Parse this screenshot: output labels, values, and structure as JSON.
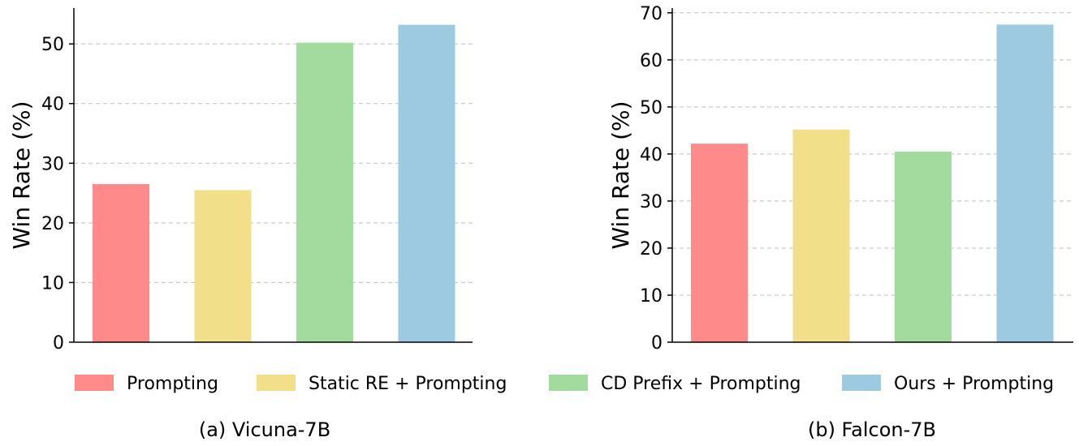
{
  "colors": {
    "prompting": "#FF8A8A",
    "static_re": "#F1DF8A",
    "cd_prefix": "#A3DB9E",
    "ours": "#9ECAE1",
    "grid": "#BFBFBF",
    "axis": "#000000"
  },
  "legend": {
    "items": [
      {
        "label": "Prompting",
        "color_key": "prompting"
      },
      {
        "label": "Static RE + Prompting",
        "color_key": "static_re"
      },
      {
        "label": "CD Prefix + Prompting",
        "color_key": "cd_prefix"
      },
      {
        "label": "Ours + Prompting",
        "color_key": "ours"
      }
    ]
  },
  "chart_data": [
    {
      "type": "bar",
      "caption": "(a) Vicuna-7B",
      "ylabel": "Win Rate (%)",
      "xlabel": "",
      "categories": [
        "Prompting",
        "Static RE + Prompting",
        "CD Prefix + Prompting",
        "Ours + Prompting"
      ],
      "values": [
        26.5,
        25.5,
        50.2,
        53.2
      ],
      "ylim": [
        0,
        56
      ],
      "yticks": [
        0,
        10,
        20,
        30,
        40,
        50
      ],
      "grid": "y-dashed",
      "legend_position": "bottom"
    },
    {
      "type": "bar",
      "caption": "(b) Falcon-7B",
      "ylabel": "Win Rate (%)",
      "xlabel": "",
      "categories": [
        "Prompting",
        "Static RE + Prompting",
        "CD Prefix + Prompting",
        "Ours + Prompting"
      ],
      "values": [
        42.2,
        45.2,
        40.5,
        67.5
      ],
      "ylim": [
        0,
        71
      ],
      "yticks": [
        0,
        10,
        20,
        30,
        40,
        50,
        60,
        70
      ],
      "grid": "y-dashed",
      "legend_position": "bottom"
    }
  ]
}
